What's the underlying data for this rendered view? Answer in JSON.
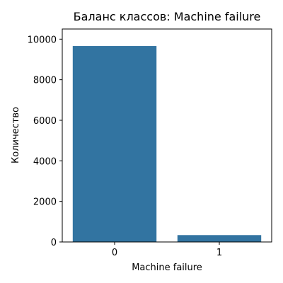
{
  "chart_data": {
    "type": "bar",
    "title": "Баланс классов: Machine failure",
    "xlabel": "Machine failure",
    "ylabel": "Количество",
    "categories": [
      "0",
      "1"
    ],
    "values": [
      9661,
      339
    ],
    "ylim": [
      0,
      10000
    ],
    "yticks": [
      0,
      2000,
      4000,
      6000,
      8000,
      10000
    ],
    "grid": false,
    "bar_color": "#3274a1"
  }
}
